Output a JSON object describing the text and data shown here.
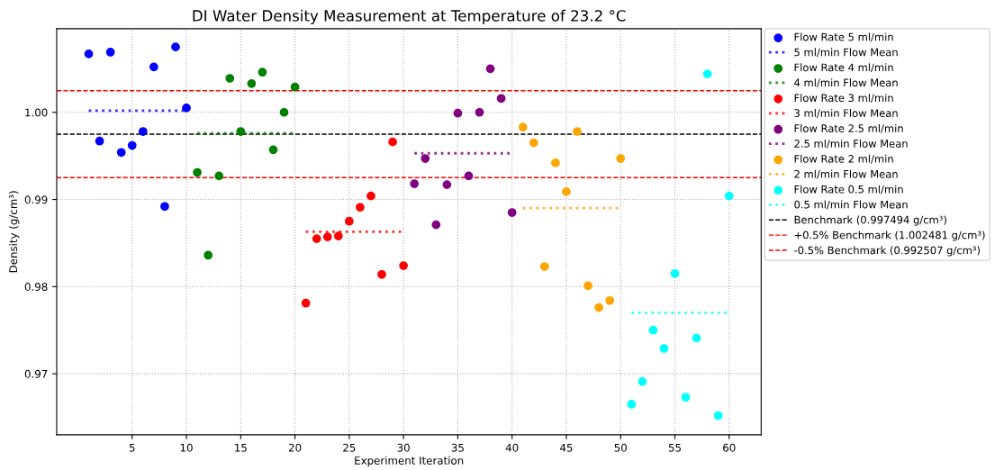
{
  "chart_data": {
    "type": "scatter",
    "title": "DI Water Density Measurement at Temperature of 23.2 °C",
    "xlabel": "Experiment Iteration",
    "ylabel": "Density (g/cm³)",
    "xlim": [
      -1.95,
      62.95
    ],
    "xticks": [
      5,
      10,
      15,
      20,
      25,
      30,
      35,
      40,
      45,
      50,
      55,
      60
    ],
    "ylim": [
      0.963,
      1.0096
    ],
    "yticks": [
      0.97,
      0.98,
      0.99,
      {
        "value": 1.0,
        "label": "1.00"
      }
    ],
    "grid": true,
    "legend": "right",
    "marker": "circle",
    "series": [
      {
        "name": "Flow Rate 5 ml/min",
        "color": "#0000ff",
        "x": [
          1,
          2,
          3,
          4,
          5,
          6,
          7,
          8,
          9,
          10
        ],
        "values": [
          1.0067,
          0.9967,
          1.0069,
          0.9954,
          0.9962,
          0.9978,
          1.0052,
          0.9892,
          1.0075,
          1.0005
        ]
      },
      {
        "name": "5 ml/min Flow Mean",
        "type": "line",
        "marker": "none",
        "line_style": "dotted",
        "color": "#0000ff",
        "x": [
          1,
          10
        ],
        "values": [
          1.0002,
          1.0002
        ]
      },
      {
        "name": "Flow Rate 4 ml/min",
        "color": "#008000",
        "x": [
          11,
          12,
          13,
          14,
          15,
          16,
          17,
          18,
          19,
          20
        ],
        "values": [
          0.9931,
          0.9836,
          0.9927,
          1.0039,
          0.9978,
          1.0033,
          1.0046,
          0.9957,
          1.0,
          1.0029
        ]
      },
      {
        "name": "4 ml/min Flow Mean",
        "type": "line",
        "marker": "none",
        "line_style": "dotted",
        "color": "#008000",
        "x": [
          11,
          20
        ],
        "values": [
          0.9976,
          0.9976
        ]
      },
      {
        "name": "Flow Rate 3 ml/min",
        "color": "#ff0000",
        "x": [
          21,
          22,
          23,
          24,
          25,
          26,
          27,
          28,
          29,
          30
        ],
        "values": [
          0.9781,
          0.9855,
          0.9857,
          0.9858,
          0.9875,
          0.9891,
          0.9904,
          0.9814,
          0.9966,
          0.9824
        ]
      },
      {
        "name": "3 ml/min Flow Mean",
        "type": "line",
        "marker": "none",
        "line_style": "dotted",
        "color": "#ff0000",
        "x": [
          21,
          30
        ],
        "values": [
          0.9863,
          0.9863
        ]
      },
      {
        "name": "Flow Rate 2.5 ml/min",
        "color": "#800080",
        "x": [
          31,
          32,
          33,
          34,
          35,
          36,
          37,
          38,
          39,
          40
        ],
        "values": [
          0.9918,
          0.9947,
          0.9871,
          0.9917,
          0.9999,
          0.9927,
          1.0,
          1.005,
          1.0016,
          0.9885
        ]
      },
      {
        "name": "2.5 ml/min Flow Mean",
        "type": "line",
        "marker": "none",
        "line_style": "dotted",
        "color": "#800080",
        "x": [
          31,
          40
        ],
        "values": [
          0.9953,
          0.9953
        ]
      },
      {
        "name": "Flow Rate 2 ml/min",
        "color": "#ffa500",
        "x": [
          41,
          42,
          43,
          44,
          45,
          46,
          47,
          48,
          49,
          50
        ],
        "values": [
          0.9983,
          0.9965,
          0.9823,
          0.9942,
          0.9909,
          0.9978,
          0.9801,
          0.9776,
          0.9784,
          0.9947
        ]
      },
      {
        "name": "2 ml/min Flow Mean",
        "type": "line",
        "marker": "none",
        "line_style": "dotted",
        "color": "#ffa500",
        "x": [
          41,
          50
        ],
        "values": [
          0.989,
          0.989
        ]
      },
      {
        "name": "Flow Rate 0.5 ml/min",
        "color": "#00ffff",
        "x": [
          51,
          52,
          53,
          54,
          55,
          56,
          57,
          58,
          59,
          60
        ],
        "values": [
          0.9665,
          0.9691,
          0.975,
          0.9729,
          0.9815,
          0.9673,
          0.9741,
          1.0044,
          0.9652,
          0.9904
        ]
      },
      {
        "name": "0.5 ml/min Flow Mean",
        "type": "line",
        "marker": "none",
        "line_style": "dotted",
        "color": "#00ffff",
        "x": [
          51,
          60
        ],
        "values": [
          0.977,
          0.977
        ]
      }
    ],
    "ref_lines": [
      {
        "axis": "y",
        "value": 0.997494,
        "label": "Benchmark (0.997494 g/cm³)",
        "color": "#000000",
        "line_style": "dashed"
      },
      {
        "axis": "y",
        "value": 1.002481,
        "label": "+0.5% Benchmark (1.002481 g/cm³)",
        "color": "#ff0000",
        "line_style": "dashed"
      },
      {
        "axis": "y",
        "value": 0.992507,
        "label": "-0.5% Benchmark (0.992507 g/cm³)",
        "color": "#ff0000",
        "line_style": "dashed"
      }
    ]
  }
}
